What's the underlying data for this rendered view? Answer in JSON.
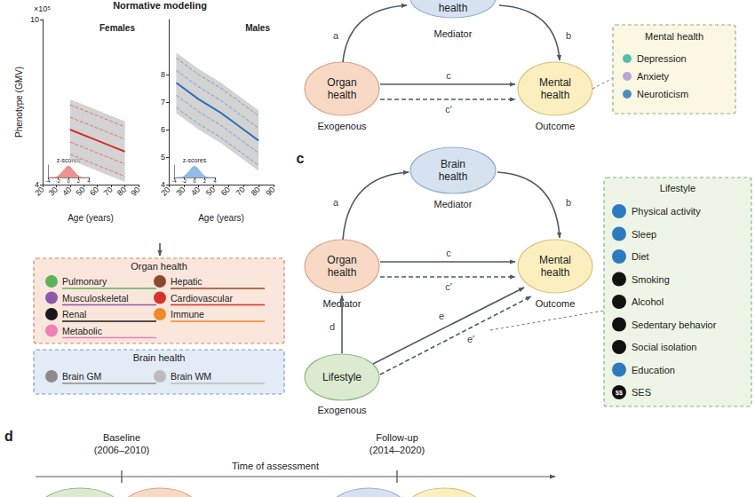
{
  "chart_data": [
    {
      "type": "line",
      "title": "Females",
      "unit": "×10⁵",
      "x_label": "Age (years)",
      "y_label": "Phenotype (GMV)",
      "xlim": [
        20,
        90
      ],
      "xticks": [
        20,
        30,
        40,
        50,
        60,
        70,
        80,
        90
      ],
      "ylim": [
        4,
        10
      ],
      "yticks": [
        4,
        10
      ],
      "x": [
        40,
        50,
        60,
        70,
        80
      ],
      "series": [
        {
          "type": "band",
          "color": "#c4c4c4",
          "lower": [
            4.9,
            4.7,
            4.5,
            4.3,
            4.1
          ],
          "upper": [
            7.1,
            6.9,
            6.7,
            6.5,
            6.3
          ]
        },
        {
          "color": "#e3736c",
          "line_style": "dashed",
          "values": [
            6.9,
            6.7,
            6.5,
            6.3,
            6.1
          ]
        },
        {
          "color": "#e3736c",
          "line_style": "dashed",
          "values": [
            6.45,
            6.25,
            6.05,
            5.85,
            5.65
          ]
        },
        {
          "color": "#e3736c",
          "line_style": "dashed",
          "values": [
            5.55,
            5.35,
            5.15,
            4.95,
            4.75
          ]
        },
        {
          "color": "#e3736c",
          "line_style": "dashed",
          "values": [
            5.1,
            4.9,
            4.7,
            4.5,
            4.3
          ]
        },
        {
          "color": "#d7302b",
          "line_style": "solid",
          "values": [
            6.0,
            5.8,
            5.6,
            5.4,
            5.2
          ]
        }
      ]
    },
    {
      "type": "line",
      "title": "Males",
      "x_label": "Age (years)",
      "xlim": [
        20,
        90
      ],
      "xticks": [
        20,
        30,
        40,
        50,
        60,
        70,
        80,
        90
      ],
      "ylim": [
        4,
        10
      ],
      "yticks": [
        4,
        5,
        6,
        7,
        8
      ],
      "x": [
        25,
        40,
        55,
        70,
        80
      ],
      "series": [
        {
          "type": "band",
          "color": "#c4c4c4",
          "lower": [
            6.6,
            6.0,
            5.5,
            4.9,
            4.5
          ],
          "upper": [
            8.8,
            8.2,
            7.7,
            7.1,
            6.7
          ]
        },
        {
          "color": "#6f9fd6",
          "line_style": "dashed",
          "values": [
            8.6,
            8.0,
            7.5,
            6.9,
            6.5
          ]
        },
        {
          "color": "#6f9fd6",
          "line_style": "dashed",
          "values": [
            8.15,
            7.55,
            7.05,
            6.45,
            6.05
          ]
        },
        {
          "color": "#6f9fd6",
          "line_style": "dashed",
          "values": [
            7.25,
            6.65,
            6.15,
            5.55,
            5.15
          ]
        },
        {
          "color": "#6f9fd6",
          "line_style": "dashed",
          "values": [
            6.8,
            6.2,
            5.7,
            5.1,
            4.7
          ]
        },
        {
          "color": "#2f6fb8",
          "line_style": "solid",
          "values": [
            7.7,
            7.1,
            6.6,
            6.0,
            5.6
          ]
        }
      ]
    },
    {
      "type": "area",
      "title": "z-scores",
      "color": "#e8807a",
      "tick_labels": "x",
      "xlim": [
        -4,
        4
      ],
      "xticks": [
        -4,
        -2,
        0,
        2,
        4
      ],
      "ylim": [
        0,
        0.45
      ],
      "x": [
        -4,
        -3,
        -2,
        -1,
        0,
        1,
        2,
        3,
        4
      ],
      "values": [
        0,
        0.004,
        0.054,
        0.242,
        0.399,
        0.242,
        0.054,
        0.004,
        0
      ]
    },
    {
      "type": "area",
      "title": "z-scores",
      "color": "#7fb0e0",
      "tick_labels": "x",
      "xlim": [
        -4,
        4
      ],
      "xticks": [
        -4,
        -2,
        0,
        2,
        4
      ],
      "ylim": [
        0,
        0.45
      ],
      "x": [
        -4,
        -3,
        -2,
        -1,
        0,
        1,
        2,
        3,
        4
      ],
      "values": [
        0,
        0.004,
        0.054,
        0.242,
        0.399,
        0.242,
        0.054,
        0.004,
        0
      ]
    }
  ],
  "diagram": {
    "title": "Normative modeling",
    "organ_box": {
      "title": "Organ health",
      "columns": [
        [
          {
            "label": "Pulmonary",
            "color": "#5bb35b"
          },
          {
            "label": "Musculoskeletal",
            "color": "#8e5aa8"
          },
          {
            "label": "Renal",
            "color": "#1a1a1a"
          },
          {
            "label": "Metabolic",
            "color": "#ef7fb8"
          }
        ],
        [
          {
            "label": "Hepatic",
            "color": "#8b4a2b"
          },
          {
            "label": "Cardiovascular",
            "color": "#d6332a"
          },
          {
            "label": "Immune",
            "color": "#f08a24"
          }
        ]
      ]
    },
    "brain_box": {
      "title": "Brain health",
      "columns": [
        [
          {
            "label": "Brain GM",
            "color": "#8c8c8c"
          }
        ],
        [
          {
            "label": "Brain WM",
            "color": "#bbbbbb"
          }
        ]
      ]
    },
    "panel_b": {
      "nodes": {
        "exogenous": {
          "label": "Organ health",
          "role": "Exogenous"
        },
        "mediator": {
          "label": "health",
          "role": "Mediator"
        },
        "outcome": {
          "label": "Mental health",
          "role": "Outcome"
        }
      },
      "paths": {
        "a": "a",
        "b": "b",
        "c": "c",
        "c_prime": "c′"
      },
      "box": {
        "title": "Mental health",
        "items": [
          {
            "label": "Depression",
            "color": "#4fbfa5"
          },
          {
            "label": "Anxiety",
            "color": "#b5a9d6"
          },
          {
            "label": "Neuroticism",
            "color": "#4a8fc0"
          }
        ]
      }
    },
    "panel_c": {
      "label": "c",
      "nodes": {
        "brain": {
          "label": "Brain health",
          "role": "Mediator"
        },
        "organ": {
          "label": "Organ health",
          "role": "Mediator"
        },
        "outcome": {
          "label": "Mental health",
          "role": "Outcome"
        },
        "lifestyle": {
          "label": "Lifestyle",
          "role": "Exogenous"
        }
      },
      "paths": {
        "a": "a",
        "b": "b",
        "c": "c",
        "c_prime": "c′",
        "d": "d",
        "e": "e",
        "e_prime": "e′"
      },
      "box": {
        "title": "Lifestyle",
        "items": [
          {
            "label": "Physical activity",
            "color": "#2b7bbf"
          },
          {
            "label": "Sleep",
            "color": "#2b7bbf"
          },
          {
            "label": "Diet",
            "color": "#2b7bbf"
          },
          {
            "label": "Smoking",
            "color": "#111111"
          },
          {
            "label": "Alcohol",
            "color": "#111111"
          },
          {
            "label": "Sedentary behavior",
            "color": "#111111"
          },
          {
            "label": "Social isolation",
            "color": "#111111"
          },
          {
            "label": "Education",
            "color": "#2b7bbf"
          },
          {
            "label": "SES",
            "color": "#111111",
            "icon_label": "$$"
          }
        ]
      }
    },
    "panel_d": {
      "label": "d",
      "axis_label": "Time of assessment",
      "marks": [
        {
          "label": "Baseline",
          "period": "(2006–2010)"
        },
        {
          "label": "Follow-up",
          "period": "(2014–2020)"
        }
      ]
    }
  }
}
